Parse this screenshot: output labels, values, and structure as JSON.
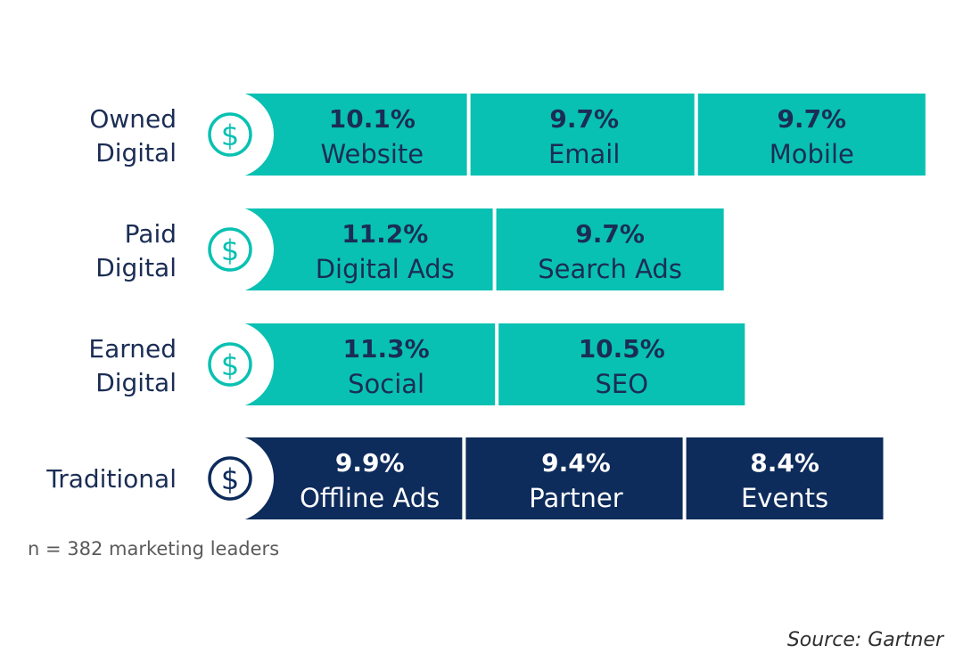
{
  "chart_data": {
    "type": "bar",
    "unit": "%",
    "rows": [
      {
        "label_lines": [
          "Owned",
          "Digital"
        ],
        "color": "#09c1b2",
        "text_color": "#1b2d55",
        "segments": [
          {
            "value": 10.1,
            "value_label": "10.1%",
            "name": "Website"
          },
          {
            "value": 9.7,
            "value_label": "9.7%",
            "name": "Email"
          },
          {
            "value": 9.7,
            "value_label": "9.7%",
            "name": "Mobile"
          }
        ]
      },
      {
        "label_lines": [
          "Paid",
          "Digital"
        ],
        "color": "#09c1b2",
        "text_color": "#1b2d55",
        "segments": [
          {
            "value": 11.2,
            "value_label": "11.2%",
            "name": "Digital Ads"
          },
          {
            "value": 9.7,
            "value_label": "9.7%",
            "name": "Search Ads"
          }
        ]
      },
      {
        "label_lines": [
          "Earned",
          "Digital"
        ],
        "color": "#09c1b2",
        "text_color": "#1b2d55",
        "segments": [
          {
            "value": 11.3,
            "value_label": "11.3%",
            "name": "Social"
          },
          {
            "value": 10.5,
            "value_label": "10.5%",
            "name": "SEO"
          }
        ]
      },
      {
        "label_lines": [
          "Traditional"
        ],
        "color": "#0d2b5b",
        "text_color": "#ffffff",
        "segments": [
          {
            "value": 9.9,
            "value_label": "9.9%",
            "name": "Offline Ads"
          },
          {
            "value": 9.4,
            "value_label": "9.4%",
            "name": "Partner"
          },
          {
            "value": 8.4,
            "value_label": "8.4%",
            "name": "Events"
          }
        ]
      }
    ]
  },
  "footnote": "n = 382 marketing leaders",
  "source": "Source: Gartner"
}
